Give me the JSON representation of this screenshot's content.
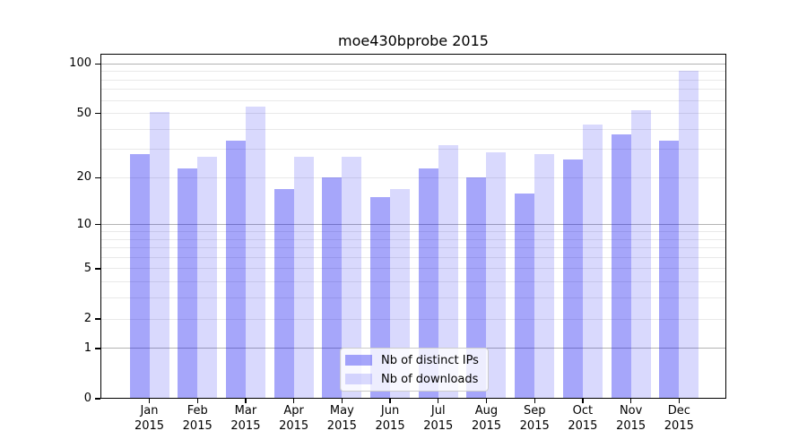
{
  "page": {
    "background": "#ffffff"
  },
  "chart_data": {
    "type": "bar",
    "title": "moe430bprobe 2015",
    "categories": [
      "Jan",
      "Feb",
      "Mar",
      "Apr",
      "May",
      "Jun",
      "Jul",
      "Aug",
      "Sep",
      "Oct",
      "Nov",
      "Dec"
    ],
    "year": "2015",
    "series": [
      {
        "name": "Nb of distinct IPs",
        "color": "#0000f0",
        "alpha": 0.35,
        "solid_hex": "#a6a6f5",
        "values": [
          28,
          23,
          34,
          17,
          20,
          15,
          23,
          20,
          16,
          26,
          37,
          34
        ]
      },
      {
        "name": "Nb of downloads",
        "color": "#0000f0",
        "alpha": 0.15,
        "solid_hex": "#d9d9f8",
        "values": [
          51,
          27,
          55,
          27,
          27,
          17,
          32,
          29,
          28,
          43,
          52,
          91
        ]
      }
    ],
    "xlabel": "",
    "ylabel": "",
    "yscale": "log1p",
    "ylim": [
      0,
      115
    ],
    "yticks": [
      0,
      1,
      2,
      5,
      10,
      20,
      50,
      100
    ],
    "major_gridlines": [
      1,
      10,
      100
    ],
    "minor_gridlines": [
      2,
      3,
      4,
      5,
      6,
      7,
      8,
      9,
      20,
      30,
      40,
      50,
      60,
      70,
      80,
      90
    ],
    "grid": "horizontal",
    "legend_position": "lower center",
    "colors": {
      "grid_major": "#b3b3b3",
      "grid_minor": "#e9e9e9",
      "frame": "#000000",
      "text": "#000000",
      "background": "#ffffff"
    }
  }
}
